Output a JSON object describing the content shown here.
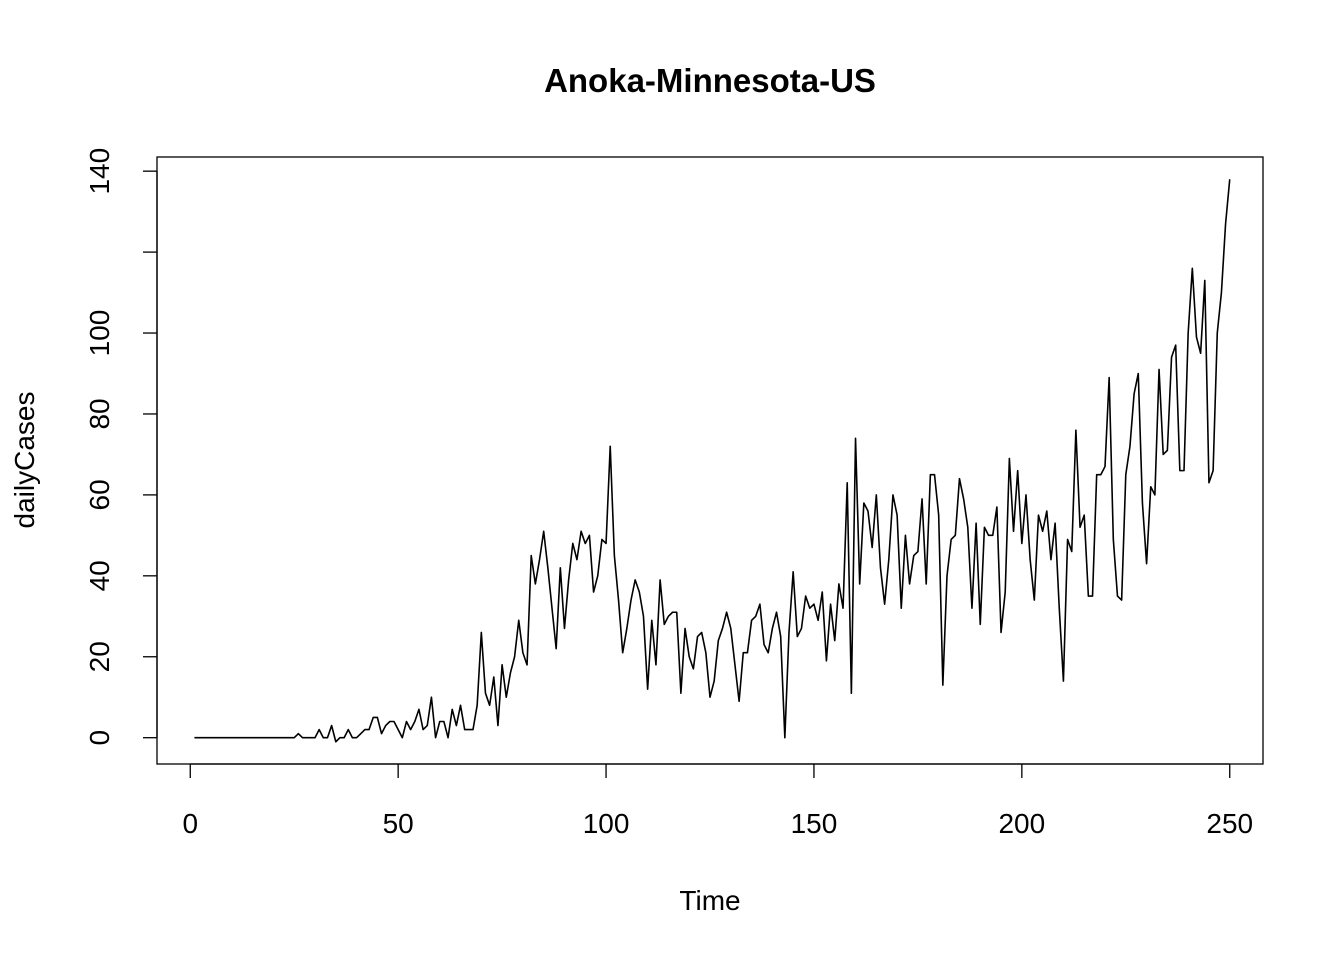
{
  "chart_data": {
    "type": "line",
    "title": "Anoka-Minnesota-US",
    "xlabel": "Time",
    "ylabel": "dailyCases",
    "xlim": [
      -8,
      258
    ],
    "ylim": [
      -6.5,
      143.5
    ],
    "xticks": [
      0,
      50,
      100,
      150,
      200,
      250
    ],
    "yticks": [
      0,
      20,
      40,
      60,
      80,
      100,
      120,
      140
    ],
    "ytick_labels": [
      "0",
      "20",
      "40",
      "60",
      "80",
      "100",
      "",
      "140"
    ],
    "grid": false,
    "legend": "none",
    "color": "#000000",
    "x_start": 1,
    "values": [
      0,
      0,
      0,
      0,
      0,
      0,
      0,
      0,
      0,
      0,
      0,
      0,
      0,
      0,
      0,
      0,
      0,
      0,
      0,
      0,
      0,
      0,
      0,
      0,
      0,
      1,
      0,
      0,
      0,
      0,
      2,
      0,
      0,
      3,
      -1,
      0,
      0,
      2,
      0,
      0,
      1,
      2,
      2,
      5,
      5,
      1,
      3,
      4,
      4,
      2,
      0,
      4,
      2,
      4,
      7,
      2,
      3,
      10,
      0,
      4,
      4,
      0,
      7,
      3,
      8,
      2,
      2,
      2,
      8,
      26,
      11,
      8,
      15,
      3,
      18,
      10,
      16,
      20,
      29,
      21,
      18,
      45,
      38,
      44,
      51,
      42,
      32,
      22,
      42,
      27,
      39,
      48,
      44,
      51,
      48,
      50,
      36,
      40,
      49,
      48,
      72,
      45,
      34,
      21,
      27,
      34,
      39,
      36,
      30,
      12,
      29,
      18,
      39,
      28,
      30,
      31,
      31,
      11,
      27,
      20,
      17,
      25,
      26,
      21,
      10,
      14,
      24,
      27,
      31,
      27,
      18,
      9,
      21,
      21,
      29,
      30,
      33,
      23,
      21,
      27,
      31,
      25,
      0,
      26,
      41,
      25,
      27,
      35,
      32,
      33,
      29,
      36,
      19,
      33,
      24,
      38,
      32,
      63,
      11,
      74,
      38,
      58,
      56,
      47,
      60,
      42,
      33,
      44,
      60,
      55,
      32,
      50,
      38,
      45,
      46,
      59,
      38,
      65,
      65,
      55,
      13,
      40,
      49,
      50,
      64,
      59,
      52,
      32,
      53,
      28,
      52,
      50,
      50,
      57,
      26,
      36,
      69,
      51,
      66,
      48,
      60,
      44,
      34,
      55,
      51,
      56,
      44,
      53,
      32,
      14,
      49,
      46,
      76,
      52,
      55,
      35,
      35,
      65,
      65,
      67,
      89,
      49,
      35,
      34,
      65,
      72,
      85,
      90,
      58,
      43,
      62,
      60,
      91,
      70,
      71,
      94,
      97,
      66,
      66,
      100,
      116,
      99,
      95,
      113,
      63,
      66,
      100,
      110,
      127,
      138
    ]
  }
}
